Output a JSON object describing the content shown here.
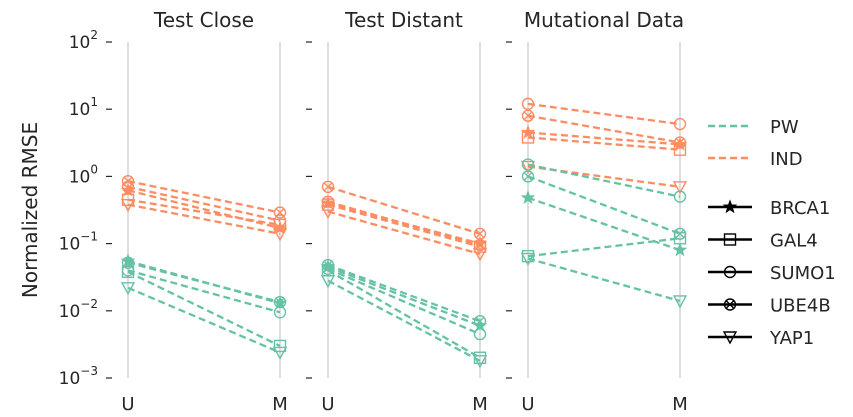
{
  "chart_data": {
    "type": "line",
    "ylabel": "Normalized RMSE",
    "yscale": "log",
    "ylim": [
      0.001,
      100
    ],
    "y_ticks": [
      {
        "base": "10",
        "exp": "−3"
      },
      {
        "base": "10",
        "exp": "−2"
      },
      {
        "base": "10",
        "exp": "−1"
      },
      {
        "base": "10",
        "exp": "0"
      },
      {
        "base": "10",
        "exp": "1"
      },
      {
        "base": "10",
        "exp": "2"
      }
    ],
    "categories": [
      "U",
      "M"
    ],
    "grid": "vertical",
    "colors": {
      "PW": "#66c2a5",
      "IND": "#fc8d62"
    },
    "legend": {
      "placement": "right",
      "methods": [
        "PW",
        "IND"
      ],
      "proteins": [
        {
          "name": "BRCA1",
          "marker": "star"
        },
        {
          "name": "GAL4",
          "marker": "square"
        },
        {
          "name": "SUMO1",
          "marker": "circle"
        },
        {
          "name": "UBE4B",
          "marker": "x-circle"
        },
        {
          "name": "YAP1",
          "marker": "triangle-down"
        }
      ]
    },
    "panels": [
      {
        "title": "Test Close",
        "series": [
          {
            "method": "IND",
            "protein": "BRCA1",
            "values": [
              0.62,
              0.17
            ]
          },
          {
            "method": "IND",
            "protein": "GAL4",
            "values": [
              0.45,
              0.19
            ]
          },
          {
            "method": "IND",
            "protein": "SUMO1",
            "values": [
              0.7,
              0.22
            ]
          },
          {
            "method": "IND",
            "protein": "UBE4B",
            "values": [
              0.85,
              0.29
            ]
          },
          {
            "method": "IND",
            "protein": "YAP1",
            "values": [
              0.38,
              0.14
            ]
          },
          {
            "method": "PW",
            "protein": "BRCA1",
            "values": [
              0.055,
              0.013
            ]
          },
          {
            "method": "PW",
            "protein": "GAL4",
            "values": [
              0.038,
              0.003
            ]
          },
          {
            "method": "PW",
            "protein": "SUMO1",
            "values": [
              0.04,
              0.0095
            ]
          },
          {
            "method": "PW",
            "protein": "UBE4B",
            "values": [
              0.052,
              0.0135
            ]
          },
          {
            "method": "PW",
            "protein": "YAP1",
            "values": [
              0.022,
              0.0024
            ]
          }
        ]
      },
      {
        "title": "Test Distant",
        "series": [
          {
            "method": "IND",
            "protein": "BRCA1",
            "values": [
              0.4,
              0.1
            ]
          },
          {
            "method": "IND",
            "protein": "GAL4",
            "values": [
              0.38,
              0.09
            ]
          },
          {
            "method": "IND",
            "protein": "SUMO1",
            "values": [
              0.42,
              0.095
            ]
          },
          {
            "method": "IND",
            "protein": "UBE4B",
            "values": [
              0.7,
              0.14
            ]
          },
          {
            "method": "IND",
            "protein": "YAP1",
            "values": [
              0.3,
              0.07
            ]
          },
          {
            "method": "PW",
            "protein": "BRCA1",
            "values": [
              0.045,
              0.006
            ]
          },
          {
            "method": "PW",
            "protein": "GAL4",
            "values": [
              0.04,
              0.002
            ]
          },
          {
            "method": "PW",
            "protein": "SUMO1",
            "values": [
              0.042,
              0.0045
            ]
          },
          {
            "method": "PW",
            "protein": "UBE4B",
            "values": [
              0.048,
              0.007
            ]
          },
          {
            "method": "PW",
            "protein": "YAP1",
            "values": [
              0.028,
              0.0018
            ]
          }
        ]
      },
      {
        "title": "Mutational Data",
        "series": [
          {
            "method": "IND",
            "protein": "BRCA1",
            "values": [
              4.5,
              3.0
            ]
          },
          {
            "method": "IND",
            "protein": "GAL4",
            "values": [
              3.8,
              2.5
            ]
          },
          {
            "method": "IND",
            "protein": "SUMO1",
            "values": [
              12.0,
              6.0
            ]
          },
          {
            "method": "IND",
            "protein": "UBE4B",
            "values": [
              8.0,
              3.2
            ]
          },
          {
            "method": "IND",
            "protein": "YAP1",
            "values": [
              1.4,
              0.7
            ]
          },
          {
            "method": "PW",
            "protein": "BRCA1",
            "values": [
              0.48,
              0.08
            ]
          },
          {
            "method": "PW",
            "protein": "GAL4",
            "values": [
              0.065,
              0.12
            ]
          },
          {
            "method": "PW",
            "protein": "SUMO1",
            "values": [
              1.5,
              0.5
            ]
          },
          {
            "method": "PW",
            "protein": "UBE4B",
            "values": [
              1.0,
              0.14
            ]
          },
          {
            "method": "PW",
            "protein": "YAP1",
            "values": [
              0.06,
              0.014
            ]
          }
        ]
      }
    ]
  }
}
